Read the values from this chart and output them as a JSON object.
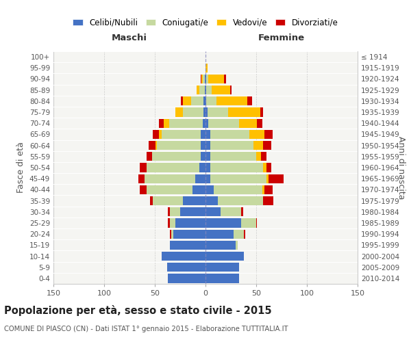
{
  "age_groups": [
    "0-4",
    "5-9",
    "10-14",
    "15-19",
    "20-24",
    "25-29",
    "30-34",
    "35-39",
    "40-44",
    "45-49",
    "50-54",
    "55-59",
    "60-64",
    "65-69",
    "70-74",
    "75-79",
    "80-84",
    "85-89",
    "90-94",
    "95-99",
    "100+"
  ],
  "birth_years": [
    "2010-2014",
    "2005-2009",
    "2000-2004",
    "1995-1999",
    "1990-1994",
    "1985-1989",
    "1980-1984",
    "1975-1979",
    "1970-1974",
    "1965-1969",
    "1960-1964",
    "1955-1959",
    "1950-1954",
    "1945-1949",
    "1940-1944",
    "1935-1939",
    "1930-1934",
    "1925-1929",
    "1920-1924",
    "1915-1919",
    "≤ 1914"
  ],
  "maschi": {
    "celibi": [
      37,
      38,
      43,
      35,
      32,
      30,
      25,
      22,
      13,
      10,
      6,
      5,
      5,
      5,
      3,
      2,
      2,
      1,
      1,
      0,
      0
    ],
    "coniugati": [
      0,
      0,
      0,
      0,
      2,
      5,
      10,
      30,
      45,
      50,
      52,
      48,
      43,
      38,
      33,
      20,
      12,
      5,
      2,
      0,
      0
    ],
    "vedovi": [
      0,
      0,
      0,
      0,
      0,
      0,
      0,
      0,
      0,
      0,
      0,
      0,
      1,
      3,
      5,
      8,
      8,
      3,
      1,
      0,
      0
    ],
    "divorziati": [
      0,
      0,
      0,
      0,
      1,
      2,
      2,
      3,
      7,
      6,
      7,
      5,
      7,
      6,
      5,
      0,
      2,
      0,
      1,
      0,
      0
    ]
  },
  "femmine": {
    "nubili": [
      33,
      33,
      38,
      30,
      28,
      35,
      15,
      12,
      8,
      5,
      5,
      5,
      5,
      5,
      3,
      2,
      1,
      1,
      1,
      0,
      0
    ],
    "coniugate": [
      0,
      0,
      0,
      2,
      10,
      15,
      20,
      45,
      48,
      55,
      52,
      45,
      42,
      38,
      30,
      20,
      10,
      5,
      2,
      0,
      0
    ],
    "vedove": [
      0,
      0,
      0,
      0,
      0,
      0,
      0,
      0,
      2,
      2,
      3,
      5,
      10,
      15,
      18,
      32,
      30,
      18,
      15,
      2,
      0
    ],
    "divorziate": [
      0,
      0,
      0,
      0,
      1,
      1,
      2,
      10,
      8,
      15,
      5,
      5,
      8,
      8,
      5,
      3,
      5,
      2,
      2,
      0,
      0
    ]
  },
  "colors": {
    "celibi": "#4472c4",
    "coniugati": "#c6d9a0",
    "vedovi": "#ffc000",
    "divorziati": "#cc0000"
  },
  "xlim": 150,
  "title": "Popolazione per età, sesso e stato civile - 2015",
  "subtitle": "COMUNE DI PIASCO (CN) - Dati ISTAT 1° gennaio 2015 - Elaborazione TUTTITALIA.IT",
  "ylabel_left": "Fasce di età",
  "ylabel_right": "Anni di nascita",
  "xlabel_maschi": "Maschi",
  "xlabel_femmine": "Femmine",
  "legend_labels": [
    "Celibi/Nubili",
    "Coniugati/e",
    "Vedovi/e",
    "Divorziati/e"
  ],
  "bg_color": "#ffffff",
  "plot_bg": "#f5f5f2",
  "grid_color": "#cccccc"
}
